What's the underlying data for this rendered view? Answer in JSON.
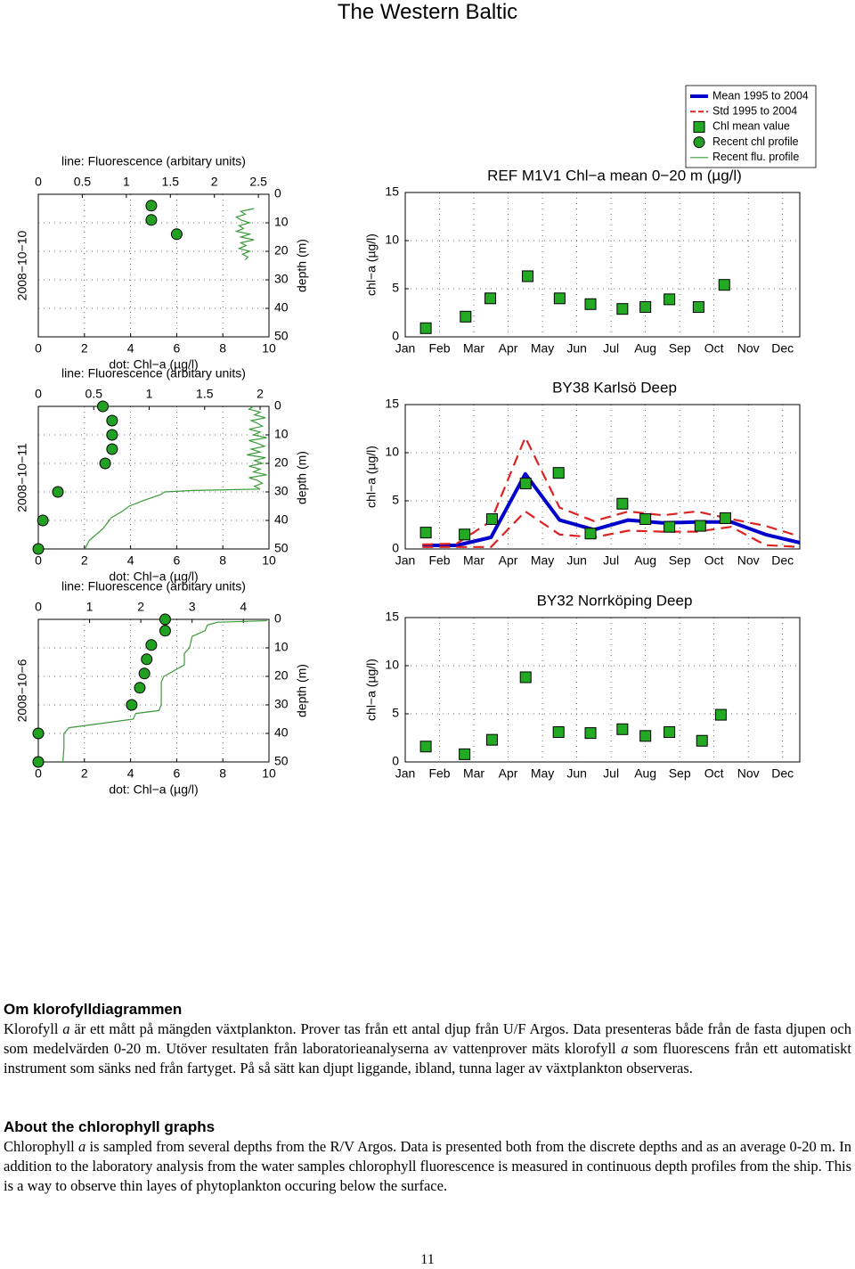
{
  "title": "The Western Baltic",
  "chart_data": [
    {
      "type": "profile",
      "row_label": "2008−10−10",
      "xlabel": "dot: Chl−a (µg/l)",
      "x2label": "line: Fluorescence (arbitary units)",
      "ylabel": "depth (m)",
      "xlim": [
        0,
        10
      ],
      "xticks": [
        0,
        2,
        4,
        6,
        8,
        10
      ],
      "x2lim": [
        0,
        2.62
      ],
      "x2ticks": [
        0,
        0.5,
        1,
        1.5,
        2,
        2.5
      ],
      "ylim": [
        0,
        50
      ],
      "yticks": [
        0,
        10,
        20,
        30,
        40,
        50
      ],
      "y_reversed": true,
      "grid": true,
      "series": [
        {
          "name": "Recent chl profile",
          "color": "#22a022",
          "marker": "circle",
          "x": [
            4.9,
            4.9,
            6.0
          ],
          "y": [
            4,
            9,
            14
          ]
        },
        {
          "name": "Recent flu. profile",
          "color": "#3a9a3a",
          "axis": "x2",
          "x": [
            2.45,
            2.3,
            2.35,
            2.25,
            2.3,
            2.4,
            2.28,
            2.33,
            2.25,
            2.4,
            2.3,
            2.45,
            2.3,
            2.36,
            2.28,
            2.4,
            2.32,
            2.38,
            2.35
          ],
          "y": [
            5,
            6,
            7,
            8,
            9,
            10,
            11,
            12,
            13,
            14,
            15,
            16,
            17,
            18,
            19,
            20,
            21,
            22,
            23
          ]
        }
      ]
    },
    {
      "type": "profile",
      "row_label": "2008−10−11",
      "xlabel": "dot: Chl−a (µg/l)",
      "x2label": "line: Fluorescence (arbitary units)",
      "ylabel": "depth (m)",
      "xlim": [
        0,
        10
      ],
      "xticks": [
        0,
        2,
        4,
        6,
        8,
        10
      ],
      "x2lim": [
        0,
        2.08
      ],
      "x2ticks": [
        0,
        0.5,
        1,
        1.5,
        2
      ],
      "ylim": [
        0,
        50
      ],
      "yticks": [
        0,
        10,
        20,
        30,
        40,
        50
      ],
      "y_reversed": true,
      "grid": true,
      "series": [
        {
          "color": "#22a022",
          "marker": "circle",
          "x": [
            2.8,
            3.2,
            3.2,
            3.2,
            2.9,
            0.85,
            0.2,
            0
          ],
          "y": [
            0,
            5,
            10,
            15,
            20,
            30,
            40,
            50
          ]
        },
        {
          "color": "#3a9a3a",
          "axis": "x2",
          "x": [
            1.94,
            1.9,
            2.0,
            1.95,
            2.05,
            1.92,
            1.98,
            2.02,
            1.9,
            2.0,
            1.94,
            2.06,
            1.9,
            1.98,
            2.04,
            1.92,
            2.0,
            1.88,
            2.05,
            1.95,
            2.02,
            1.9,
            2.0,
            1.94,
            2.06,
            1.9,
            1.98,
            2.02,
            1.95,
            2.0,
            1.4,
            1.14,
            1.1,
            0.95,
            0.82,
            0.75,
            0.66,
            0.62,
            0.58,
            0.52,
            0.46,
            0.42
          ],
          "y": [
            0,
            1,
            2,
            3,
            4,
            5,
            6,
            7,
            8,
            9,
            10,
            11,
            12,
            13,
            14,
            15,
            16,
            17,
            18,
            19,
            20,
            21,
            22,
            23,
            24,
            25,
            26,
            27,
            28,
            29,
            29.5,
            30,
            31,
            33,
            35,
            37,
            39,
            41,
            43,
            45,
            47,
            50
          ]
        }
      ]
    },
    {
      "type": "profile",
      "row_label": "2008−10−6",
      "xlabel": "dot: Chl−a (µg/l)",
      "x2label": "line: Fluorescence (arbitary units)",
      "ylabel": "depth (m)",
      "xlim": [
        0,
        10
      ],
      "xticks": [
        0,
        2,
        4,
        6,
        8,
        10
      ],
      "x2lim": [
        0,
        4.5
      ],
      "x2ticks": [
        0,
        1,
        2,
        3,
        4
      ],
      "ylim": [
        0,
        50
      ],
      "yticks": [
        0,
        10,
        20,
        30,
        40,
        50
      ],
      "y_reversed": true,
      "grid": true,
      "series": [
        {
          "color": "#22a022",
          "marker": "circle",
          "x": [
            5.5,
            5.5,
            4.9,
            4.7,
            4.6,
            4.4,
            4.05,
            0,
            0
          ],
          "y": [
            0,
            4,
            9,
            14,
            19,
            24,
            30,
            40,
            50
          ]
        },
        {
          "color": "#3a9a3a",
          "axis": "x2",
          "x": [
            4.45,
            4.45,
            3.5,
            3.3,
            3.25,
            3.0,
            2.95,
            2.85,
            2.85,
            2.45,
            2.4,
            2.4,
            2.4,
            2.35,
            1.9,
            1.85,
            0.6,
            0.5,
            0.5,
            0.48
          ],
          "y": [
            0,
            0.5,
            1,
            2,
            4,
            6,
            10,
            12,
            16,
            20,
            22,
            26,
            30,
            32,
            33,
            35,
            38,
            40,
            45,
            50
          ]
        }
      ]
    },
    {
      "type": "scatter",
      "title": "REF M1V1 Chl−a mean 0−20 m (µg/l)",
      "ylabel": "chl−a (µg/l)",
      "xlim": [
        1,
        12.5
      ],
      "xticks": [
        {
          "value": 1,
          "label": "Jan"
        },
        {
          "value": 2,
          "label": "Feb"
        },
        {
          "value": 3,
          "label": "Mar"
        },
        {
          "value": 4,
          "label": "Apr"
        },
        {
          "value": 5,
          "label": "May"
        },
        {
          "value": 6,
          "label": "Jun"
        },
        {
          "value": 7,
          "label": "Jul"
        },
        {
          "value": 8,
          "label": "Aug"
        },
        {
          "value": 9,
          "label": "Sep"
        },
        {
          "value": 10,
          "label": "Oct"
        },
        {
          "value": 11,
          "label": "Nov"
        },
        {
          "value": 12,
          "label": "Dec"
        }
      ],
      "ylim": [
        0,
        15
      ],
      "yticks": [
        0,
        5,
        10,
        15
      ],
      "grid": true,
      "series": [
        {
          "name": "Chl mean value",
          "color": "#22aa22",
          "marker": "square",
          "x": [
            1.6,
            2.76,
            3.48,
            4.57,
            5.5,
            6.4,
            7.33,
            8.0,
            8.7,
            9.55,
            10.3
          ],
          "values": [
            0.9,
            2.1,
            4.0,
            6.3,
            4.0,
            3.4,
            2.9,
            3.1,
            3.9,
            3.1,
            5.4
          ]
        }
      ]
    },
    {
      "type": "line",
      "title": "BY38 Karlsö Deep",
      "ylabel": "chl−a (µg/l)",
      "xlim": [
        1,
        12.5
      ],
      "xticks": [
        {
          "value": 1,
          "label": "Jan"
        },
        {
          "value": 2,
          "label": "Feb"
        },
        {
          "value": 3,
          "label": "Mar"
        },
        {
          "value": 4,
          "label": "Apr"
        },
        {
          "value": 5,
          "label": "May"
        },
        {
          "value": 6,
          "label": "Jun"
        },
        {
          "value": 7,
          "label": "Jul"
        },
        {
          "value": 8,
          "label": "Aug"
        },
        {
          "value": 9,
          "label": "Sep"
        },
        {
          "value": 10,
          "label": "Oct"
        },
        {
          "value": 11,
          "label": "Nov"
        },
        {
          "value": 12,
          "label": "Dec"
        }
      ],
      "ylim": [
        0,
        15
      ],
      "yticks": [
        0,
        5,
        10,
        15
      ],
      "grid": true,
      "x": [
        1.5,
        2.5,
        3.5,
        4.5,
        5.5,
        6.5,
        7.5,
        8.5,
        9.5,
        10.5,
        11.5,
        12.5
      ],
      "series": [
        {
          "name": "Mean 1995 to 2004",
          "color": "#0000cc",
          "values": [
            0.37,
            0.37,
            1.2,
            7.8,
            3.0,
            2.0,
            3.0,
            2.7,
            2.8,
            2.8,
            1.5,
            0.65
          ]
        },
        {
          "name": "Std 1995 to 2004",
          "color": "#dd2222",
          "dash": true,
          "upper": [
            0.46,
            0.56,
            2.9,
            11.6,
            4.3,
            2.9,
            3.9,
            3.5,
            3.9,
            3.1,
            2.4,
            1.3
          ],
          "lower": [
            0.2,
            0.2,
            0.2,
            3.9,
            1.5,
            1.2,
            1.9,
            1.8,
            1.8,
            2.3,
            0.4,
            0.2
          ]
        },
        {
          "color": "#22aa22",
          "marker": "square",
          "x": [
            1.6,
            2.73,
            3.53,
            4.51,
            5.47,
            6.4,
            7.33,
            8.0,
            8.7,
            9.6,
            10.33
          ],
          "values": [
            1.7,
            1.5,
            3.1,
            6.8,
            7.9,
            1.6,
            4.7,
            3.1,
            2.3,
            2.4,
            3.2
          ]
        }
      ]
    },
    {
      "type": "scatter",
      "title": "BY32 Norrköping Deep",
      "ylabel": "chl−a (µg/l)",
      "xlim": [
        1,
        12.5
      ],
      "xticks": [
        {
          "value": 1,
          "label": "Jan"
        },
        {
          "value": 2,
          "label": "Feb"
        },
        {
          "value": 3,
          "label": "Mar"
        },
        {
          "value": 4,
          "label": "Apr"
        },
        {
          "value": 5,
          "label": "May"
        },
        {
          "value": 6,
          "label": "Jun"
        },
        {
          "value": 7,
          "label": "Jul"
        },
        {
          "value": 8,
          "label": "Aug"
        },
        {
          "value": 9,
          "label": "Sep"
        },
        {
          "value": 10,
          "label": "Oct"
        },
        {
          "value": 11,
          "label": "Nov"
        },
        {
          "value": 12,
          "label": "Dec"
        }
      ],
      "ylim": [
        0,
        15
      ],
      "yticks": [
        0,
        5,
        10,
        15
      ],
      "grid": true,
      "series": [
        {
          "color": "#22aa22",
          "marker": "square",
          "x": [
            1.6,
            2.73,
            3.53,
            4.51,
            5.47,
            6.4,
            7.33,
            8.0,
            8.7,
            9.65,
            10.2
          ],
          "values": [
            1.6,
            0.8,
            2.3,
            8.8,
            3.1,
            3.0,
            3.4,
            2.7,
            3.1,
            2.2,
            4.9
          ]
        }
      ]
    }
  ],
  "swedish": {
    "heading": "Om klorofylldiagrammen",
    "paragraph": [
      "Klorofyll ",
      "a",
      " är ett mått på mängden växtplankton. Prover tas från ett antal djup från U/F Argos. Data presenteras både från de fasta djupen och som medelvärden 0-20 m. Utöver resultaten från laboratorieanalyserna av vattenprover mäts klorofyll ",
      "a",
      " som fluorescens från ett automatiskt instrument som sänks ned från fartyget. På så sätt kan djupt liggande, ibland, tunna lager av växtplankton observeras."
    ]
  },
  "english": {
    "heading": "About the chlorophyll graphs",
    "paragraph": [
      "Chlorophyll ",
      "a",
      " is sampled from several depths from the R/V Argos. Data is presented both from the discrete depths and as an average 0-20 m. In addition to the laboratory analysis from the water samples chlorophyll fluorescence is measured in continuous depth profiles from the ship. This is a way to observe thin layes of phytoplankton occuring below the surface."
    ]
  },
  "page_number": "11"
}
